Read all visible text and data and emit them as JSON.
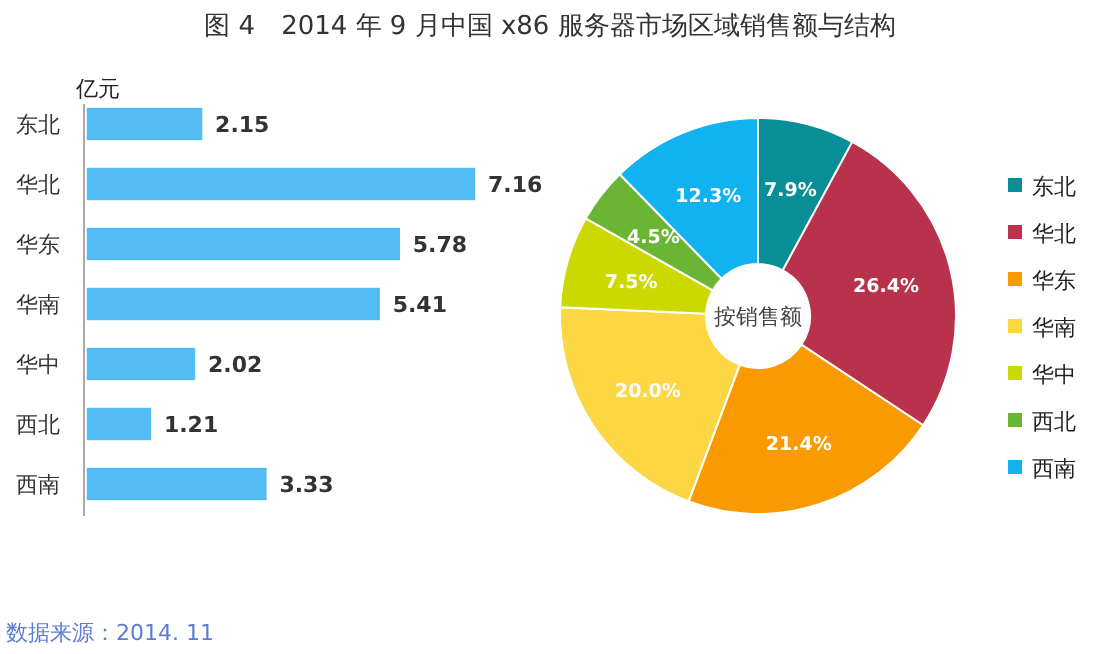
{
  "chart_data": [
    {
      "type": "bar",
      "title": "图 4　2014 年 9 月中国 x86 服务器市场区域销售额与结构",
      "xlabel": "亿元",
      "orientation": "horizontal",
      "data_labels": true,
      "color": "#53bdf3",
      "categories": [
        "东北",
        "华北",
        "华东",
        "华南",
        "华中",
        "西北",
        "西南"
      ],
      "values": [
        2.15,
        7.16,
        5.78,
        5.41,
        2.02,
        1.21,
        3.33
      ],
      "annotations": [
        "数据来源：2014. 11"
      ]
    },
    {
      "type": "donut",
      "title": "按销售额",
      "legend": "right",
      "categories": [
        "东北",
        "华北",
        "华东",
        "华南",
        "华中",
        "西北",
        "西南"
      ],
      "values": [
        7.9,
        26.4,
        21.4,
        20.0,
        7.5,
        4.5,
        12.3
      ],
      "value_labels": [
        "7.9%",
        "26.4%",
        "21.4%",
        "20.0%",
        "7.5%",
        "4.5%",
        "12.3%"
      ],
      "colors": [
        "#088e97",
        "#b7324a",
        "#f99b00",
        "#fdd644",
        "#cbd900",
        "#6bb534",
        "#10b2ef"
      ]
    }
  ]
}
